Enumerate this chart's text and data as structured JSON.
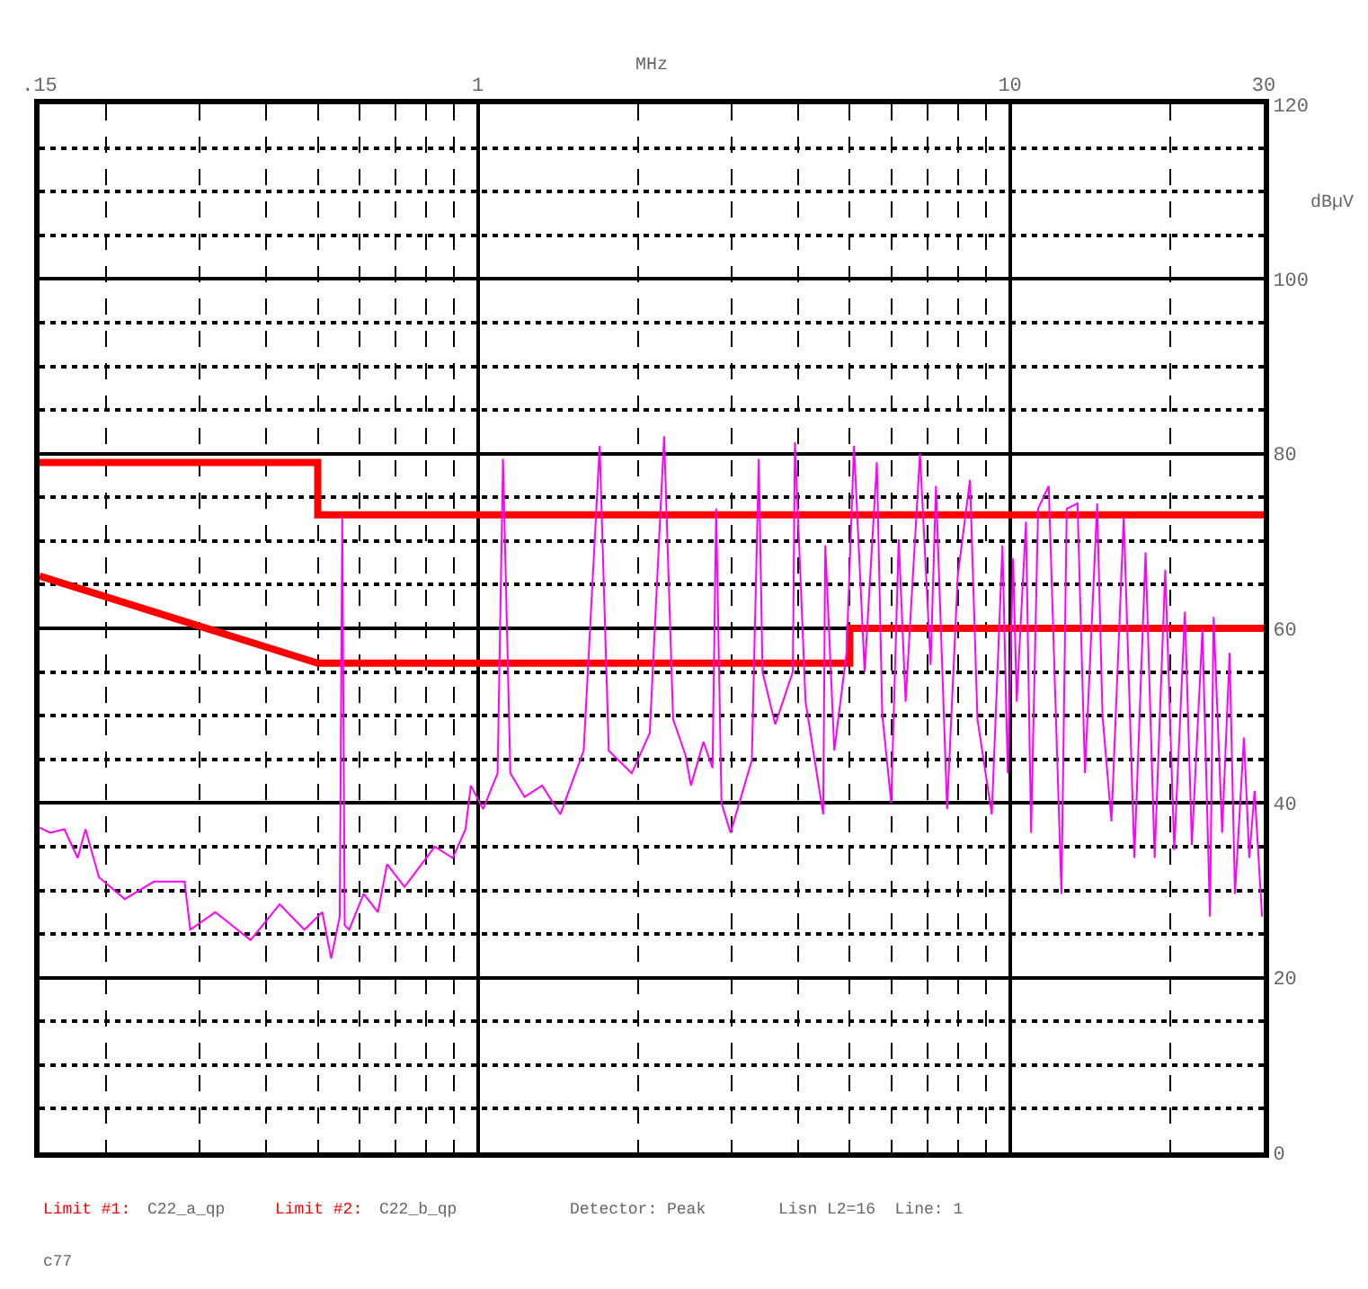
{
  "chart_data": {
    "type": "line",
    "xlabel": "MHz",
    "ylabel": "dBµV",
    "log": "x",
    "grid": true,
    "marker": "none",
    "line_style": "solid",
    "xlim": [
      0.15,
      30
    ],
    "ylim": [
      0,
      120
    ],
    "xticks": [
      {
        "value": 0.15,
        "label": ".15"
      },
      {
        "value": 0.2,
        "label": null
      },
      {
        "value": 0.3,
        "label": null
      },
      {
        "value": 0.4,
        "label": null
      },
      {
        "value": 0.5,
        "label": null
      },
      {
        "value": 0.6,
        "label": null
      },
      {
        "value": 0.7,
        "label": null
      },
      {
        "value": 0.8,
        "label": null
      },
      {
        "value": 0.9,
        "label": null
      },
      1,
      {
        "value": 2,
        "label": null
      },
      {
        "value": 3,
        "label": null
      },
      {
        "value": 4,
        "label": null
      },
      {
        "value": 5,
        "label": null
      },
      {
        "value": 6,
        "label": null
      },
      {
        "value": 7,
        "label": null
      },
      {
        "value": 8,
        "label": null
      },
      {
        "value": 9,
        "label": null
      },
      10,
      {
        "value": 20,
        "label": null
      },
      30
    ],
    "yticks": [
      0,
      {
        "value": 5,
        "label": null
      },
      {
        "value": 10,
        "label": null
      },
      {
        "value": 15,
        "label": null
      },
      20,
      {
        "value": 25,
        "label": null
      },
      {
        "value": 30,
        "label": null
      },
      {
        "value": 35,
        "label": null
      },
      40,
      {
        "value": 45,
        "label": null
      },
      {
        "value": 50,
        "label": null
      },
      {
        "value": 55,
        "label": null
      },
      60,
      {
        "value": 65,
        "label": null
      },
      {
        "value": 70,
        "label": null
      },
      {
        "value": 75,
        "label": null
      },
      80,
      {
        "value": 85,
        "label": null
      },
      {
        "value": 90,
        "label": null
      },
      {
        "value": 95,
        "label": null
      },
      100,
      {
        "value": 105,
        "label": null
      },
      {
        "value": 110,
        "label": null
      },
      {
        "value": 115,
        "label": null
      },
      120
    ],
    "series": [
      {
        "color": "#ff0000",
        "x": [
          0.15,
          0.5,
          0.5,
          30
        ],
        "values": [
          79,
          79,
          73,
          73
        ]
      },
      {
        "color": "#ff0000",
        "x": [
          0.15,
          0.5,
          5,
          5,
          30
        ],
        "values": [
          66,
          56,
          56,
          60,
          60
        ]
      },
      {
        "color": "#ff00ff",
        "x": [
          0.15,
          0.157,
          0.167,
          0.177,
          0.183,
          0.194,
          0.217,
          0.246,
          0.281,
          0.288,
          0.321,
          0.374,
          0.424,
          0.472,
          0.51,
          0.53,
          0.55,
          0.556,
          0.562,
          0.573,
          0.61,
          0.649,
          0.675,
          0.728,
          0.83,
          0.897,
          0.948,
          0.97,
          1.023,
          1.089,
          1.115,
          1.151,
          1.224,
          1.321,
          1.429,
          1.581,
          1.694,
          1.762,
          1.946,
          2.104,
          2.239,
          2.328,
          2.456,
          2.515,
          2.655,
          2.761,
          2.805,
          2.87,
          2.985,
          3.273,
          3.373,
          3.428,
          3.622,
          3.908,
          3.944,
          4.13,
          4.457,
          4.498,
          4.677,
          4.932,
          5.093,
          5.333,
          5.623,
          5.754,
          5.984,
          6.18,
          6.368,
          6.776,
          7.096,
          7.261,
          7.621,
          7.98,
          8.414,
          8.69,
          9.247,
          9.683,
          9.908,
          10.14,
          10.3,
          10.72,
          10.96,
          11.3,
          11.83,
          12.5,
          12.79,
          13.4,
          13.84,
          14.59,
          14.93,
          15.52,
          16.37,
          17.14,
          17.99,
          18.71,
          19.59,
          20.37,
          21.33,
          21.98,
          23.01,
          23.77,
          24.15,
          25.06,
          25.88,
          26.49,
          27.54,
          28.18,
          28.84,
          29.78
        ],
        "values": [
          37.2,
          36.6,
          37,
          33.7,
          37,
          31.5,
          29,
          31,
          31,
          25.5,
          27.5,
          24.3,
          28.4,
          25.5,
          27.5,
          22.2,
          27,
          72.8,
          26,
          25.5,
          29.6,
          27.5,
          33,
          30.4,
          35,
          33.7,
          37,
          42,
          39.3,
          43.4,
          79.4,
          43.4,
          40.7,
          42,
          38.7,
          46,
          80.9,
          46,
          43.4,
          48,
          82,
          49.6,
          45.5,
          42,
          47,
          44,
          73.7,
          40,
          36.6,
          44.9,
          79.4,
          55,
          49,
          55,
          81.3,
          51.6,
          38.7,
          69.5,
          46,
          57.2,
          80.9,
          55,
          79,
          50.2,
          40,
          70.2,
          51.6,
          80,
          55.8,
          76.3,
          39.3,
          66,
          77,
          49.6,
          38.7,
          69.5,
          43.4,
          68,
          51.6,
          72.2,
          36.6,
          73.7,
          76.3,
          29.6,
          73.7,
          74.3,
          43.4,
          74.3,
          50,
          37.9,
          72.8,
          33.7,
          68.7,
          33.7,
          66.7,
          34.6,
          61.9,
          35.2,
          59.9,
          27,
          61.3,
          36.6,
          57.2,
          29.6,
          47.5,
          33.7,
          41.4,
          27
        ]
      }
    ],
    "annotations": [
      "Limit #1:",
      "C22_a_qp",
      "Limit #2:",
      "C22_b_qp",
      "Detector: Peak",
      "Lisn L2=16  Line: 1",
      "c77"
    ]
  }
}
